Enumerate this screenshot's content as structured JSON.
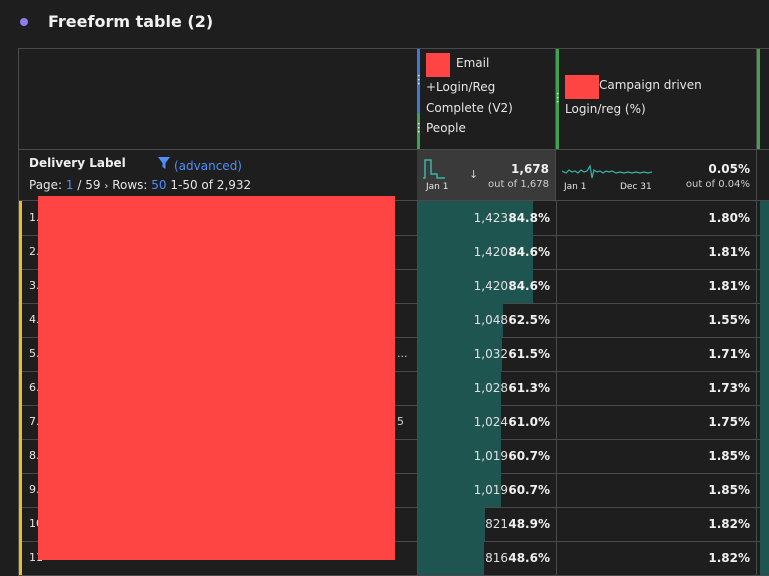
{
  "panel": {
    "title": "Freeform table (2)",
    "accent": "#8e7cf0"
  },
  "columns": [
    {
      "metric": "Email +Login/Reg Complete (V2)",
      "segment": "People"
    },
    {
      "metric": "Campaign driven Login/reg (%)"
    }
  ],
  "dimension": {
    "label": "Delivery Label",
    "filter_label": "(advanced)"
  },
  "pager": {
    "page_label": "Page:",
    "page": "1",
    "page_sep": "/ 59",
    "rows_label": "Rows:",
    "rows": "50",
    "range": "1-50 of 2,932"
  },
  "summary": {
    "col1": {
      "total": "1,678",
      "out_of": "out of 1,678",
      "spark_start": "Jan 1"
    },
    "col2": {
      "total": "0.05%",
      "out_of": "out of 0.04%",
      "spark_start": "Jan 1",
      "spark_end": "Dec 31"
    }
  },
  "rows": [
    {
      "idx": "1.",
      "trail": "",
      "v1": "1,423",
      "p1": "84.8%",
      "frac": 0.848,
      "v2": "1.80%"
    },
    {
      "idx": "2.",
      "trail": "",
      "v1": "1,420",
      "p1": "84.6%",
      "frac": 0.846,
      "v2": "1.81%"
    },
    {
      "idx": "3.",
      "trail": "",
      "v1": "1,420",
      "p1": "84.6%",
      "frac": 0.846,
      "v2": "1.81%"
    },
    {
      "idx": "4.",
      "trail": "",
      "v1": "1,048",
      "p1": "62.5%",
      "frac": 0.625,
      "v2": "1.55%"
    },
    {
      "idx": "5.",
      "trail": "...",
      "v1": "1,032",
      "p1": "61.5%",
      "frac": 0.615,
      "v2": "1.71%"
    },
    {
      "idx": "6.",
      "trail": "",
      "v1": "1,028",
      "p1": "61.3%",
      "frac": 0.613,
      "v2": "1.73%"
    },
    {
      "idx": "7.",
      "trail": "5",
      "v1": "1,024",
      "p1": "61.0%",
      "frac": 0.61,
      "v2": "1.75%"
    },
    {
      "idx": "8.",
      "trail": "",
      "v1": "1,019",
      "p1": "60.7%",
      "frac": 0.607,
      "v2": "1.85%"
    },
    {
      "idx": "9.",
      "trail": "",
      "v1": "1,019",
      "p1": "60.7%",
      "frac": 0.607,
      "v2": "1.85%"
    },
    {
      "idx": "10",
      "trail": "",
      "v1": "821",
      "p1": "48.9%",
      "frac": 0.489,
      "v2": "1.82%"
    },
    {
      "idx": "11",
      "trail": "",
      "v1": "816",
      "p1": "48.6%",
      "frac": 0.486,
      "v2": "1.82%"
    }
  ]
}
